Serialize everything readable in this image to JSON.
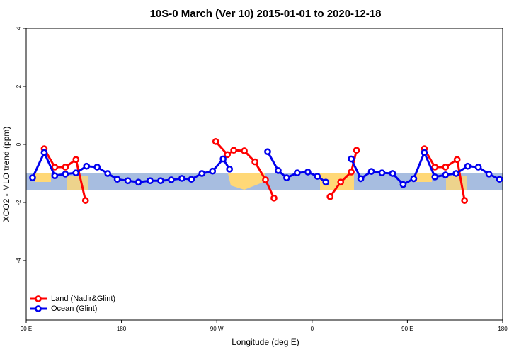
{
  "chart_data": {
    "type": "line",
    "title": "10S-0 March (Ver 10)   2015-01-01 to 2020-12-18",
    "x_label": "Longitude (deg E)",
    "y_label": "XCO2 - MLO trend (ppm)",
    "xlim": [
      90,
      540
    ],
    "ylim": [
      -6.05,
      4
    ],
    "xticks": [
      {
        "value": 90,
        "label": "90 E"
      },
      {
        "value": 180,
        "label": "180"
      },
      {
        "value": 270,
        "label": "90 W"
      },
      {
        "value": 360,
        "label": "0"
      },
      {
        "value": 450,
        "label": "90 E"
      },
      {
        "value": 540,
        "label": "180"
      }
    ],
    "yticks": [
      -4,
      -2,
      0,
      2,
      4
    ],
    "legend": "bottom-left",
    "series": [
      {
        "name": "Land (Nadir&Glint)",
        "color": "#ff0000",
        "x": [
          107,
          117,
          127,
          137,
          146,
          null,
          269,
          280,
          286,
          296,
          306,
          316,
          324,
          null,
          377,
          387,
          397,
          402,
          null,
          466,
          476,
          486,
          497,
          504
        ],
        "values": [
          -0.15,
          -0.78,
          -0.78,
          -0.52,
          -1.93,
          null,
          0.1,
          -0.35,
          -0.2,
          -0.22,
          -0.6,
          -1.22,
          -1.85,
          null,
          -1.8,
          -1.3,
          -0.95,
          -0.2,
          null,
          -0.15,
          -0.78,
          -0.78,
          -0.52,
          -1.93
        ]
      },
      {
        "name": "Ocean (Glint)",
        "color": "#0000ee",
        "x": [
          96,
          107,
          117,
          127,
          137,
          147,
          157,
          167,
          176,
          186,
          196,
          207,
          217,
          227,
          237,
          246,
          256,
          266,
          276,
          282,
          null,
          318,
          328,
          336,
          346,
          356,
          365,
          373,
          null,
          397,
          406,
          416,
          426,
          436,
          446,
          456,
          466,
          476,
          486,
          496,
          507,
          517,
          527,
          537
        ],
        "values": [
          -1.15,
          -0.28,
          -1.08,
          -1.02,
          -0.98,
          -0.75,
          -0.78,
          -1.0,
          -1.2,
          -1.25,
          -1.3,
          -1.25,
          -1.25,
          -1.22,
          -1.17,
          -1.2,
          -1.0,
          -0.92,
          -0.5,
          -0.85,
          null,
          -0.25,
          -0.9,
          -1.15,
          -0.98,
          -0.95,
          -1.1,
          -1.3,
          null,
          -0.5,
          -1.18,
          -0.93,
          -0.98,
          -1.0,
          -1.38,
          -1.18,
          -0.28,
          -1.12,
          -1.05,
          -1.0,
          -0.75,
          -0.78,
          -1.02,
          -1.2
        ]
      }
    ]
  }
}
